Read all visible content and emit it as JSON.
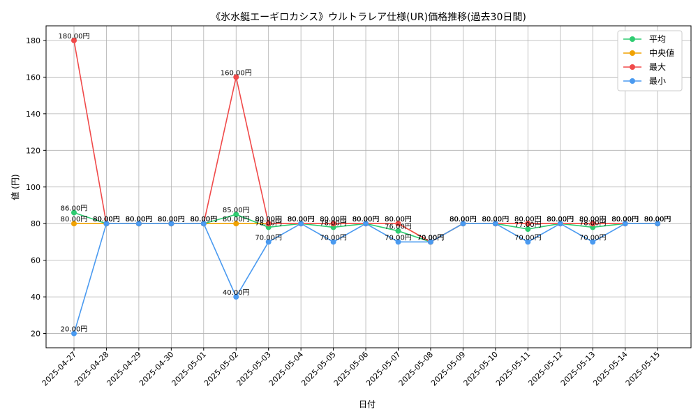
{
  "chart_data": {
    "type": "line",
    "title": "《氷水艇エーギロカシス》ウルトラレア仕様(UR)価格推移(過去30日間)",
    "xlabel": "日付",
    "ylabel": "値 (円)",
    "ylim": [
      12.2,
      188
    ],
    "yticks": [
      20,
      40,
      60,
      80,
      100,
      120,
      140,
      160,
      180
    ],
    "grid": true,
    "legend_position": "top-right",
    "value_suffix": "円",
    "categories": [
      "2025-04-27",
      "2025-04-28",
      "2025-04-29",
      "2025-04-30",
      "2025-05-01",
      "2025-05-02",
      "2025-05-03",
      "2025-05-04",
      "2025-05-05",
      "2025-05-06",
      "2025-05-07",
      "2025-05-08",
      "2025-05-09",
      "2025-05-10",
      "2025-05-11",
      "2025-05-12",
      "2025-05-13",
      "2025-05-14",
      "2025-05-15"
    ],
    "series": [
      {
        "name": "平均",
        "color": "#2ecc71",
        "values": [
          86,
          80,
          80,
          80,
          80,
          85,
          78,
          80,
          78,
          80,
          76,
          70,
          80,
          80,
          77,
          80,
          78,
          80,
          80
        ],
        "labels": [
          "86.00円",
          "80.00円",
          "80.00円",
          "80.00円",
          "80.00円",
          "85.00円",
          "78.00円",
          "80.00円",
          "78.00円",
          "80.00円",
          "76.00円",
          "70.00円",
          "80.00円",
          "80.00円",
          "77.00円",
          "80.00円",
          "78.00円",
          "80.00円",
          "80.00円"
        ]
      },
      {
        "name": "中央値",
        "color": "#f0a202",
        "values": [
          80,
          80,
          80,
          80,
          80,
          80,
          80,
          80,
          80,
          80,
          80,
          70,
          80,
          80,
          80,
          80,
          80,
          80,
          80
        ],
        "labels": [
          "80.00円",
          "80.00円",
          "80.00円",
          "80.00円",
          "80.00円",
          "80.00円",
          "80.00円",
          "80.00円",
          "80.00円",
          "80.00円",
          "80.00円",
          "70.00円",
          "80.00円",
          "80.00円",
          "80.00円",
          "80.00円",
          "80.00円",
          "80.00円",
          "80.00円"
        ]
      },
      {
        "name": "最大",
        "color": "#f04a4a",
        "values": [
          180,
          80,
          80,
          80,
          80,
          160,
          80,
          80,
          80,
          80,
          80,
          70,
          80,
          80,
          80,
          80,
          80,
          80,
          80
        ],
        "labels": [
          "180.00円",
          "80.00円",
          "80.00円",
          "80.00円",
          "80.00円",
          "160.00円",
          "80.00円",
          "80.00円",
          "80.00円",
          "80.00円",
          "80.00円",
          "70.00円",
          "80.00円",
          "80.00円",
          "80.00円",
          "80.00円",
          "80.00円",
          "80.00円",
          "80.00円"
        ]
      },
      {
        "name": "最小",
        "color": "#4a9af0",
        "values": [
          20,
          80,
          80,
          80,
          80,
          40,
          70,
          80,
          70,
          80,
          70,
          70,
          80,
          80,
          70,
          80,
          70,
          80,
          80
        ],
        "labels": [
          "20.00円",
          "80.00円",
          "80.00円",
          "80.00円",
          "80.00円",
          "40.00円",
          "70.00円",
          "80.00円",
          "70.00円",
          "80.00円",
          "70.00円",
          "70.00円",
          "80.00円",
          "80.00円",
          "70.00円",
          "80.00円",
          "70.00円",
          "80.00円",
          "80.00円"
        ]
      }
    ]
  }
}
